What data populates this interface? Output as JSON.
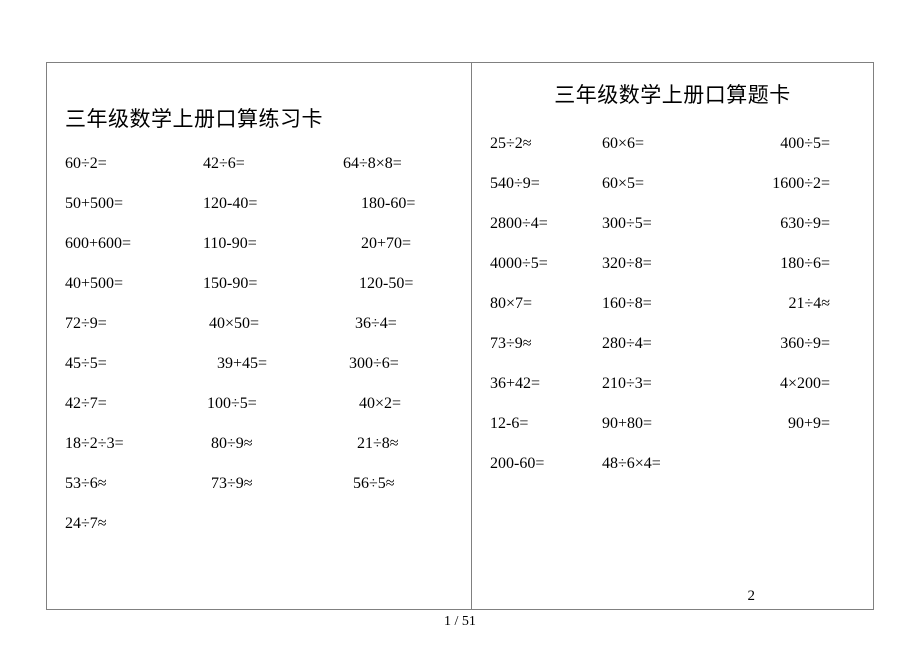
{
  "left_card": {
    "title": "三年级数学上册口算练习卡",
    "rows": [
      [
        "60÷2=",
        "42÷6=",
        "64÷8×8="
      ],
      [
        "50+500=",
        "120-40=",
        "180-60="
      ],
      [
        "600+600=",
        "110-90=",
        "20+70="
      ],
      [
        "40+500=",
        "150-90=",
        "120-50="
      ],
      [
        "72÷9=",
        "40×50=",
        "36÷4="
      ],
      [
        "45÷5=",
        "39+45=",
        "300÷6="
      ],
      [
        "42÷7=",
        "100÷5=",
        "40×2="
      ],
      [
        "18÷2÷3=",
        "80÷9≈",
        "21÷8≈"
      ],
      [
        "53÷6≈",
        "73÷9≈",
        "56÷5≈"
      ],
      [
        "24÷7≈",
        "",
        ""
      ]
    ]
  },
  "right_card": {
    "title": "三年级数学上册口算题卡",
    "rows": [
      [
        "25÷2≈",
        "60×6=",
        "400÷5="
      ],
      [
        "540÷9=",
        "60×5=",
        "1600÷2="
      ],
      [
        "2800÷4=",
        "300÷5=",
        "630÷9="
      ],
      [
        "4000÷5=",
        "320÷8=",
        "180÷6="
      ],
      [
        "80×7=",
        "160÷8=",
        "21÷4≈"
      ],
      [
        "73÷9≈",
        "280÷4=",
        "360÷9="
      ],
      [
        "36+42=",
        "210÷3=",
        "4×200="
      ],
      [
        "12-6=",
        "90+80=",
        "90+9="
      ],
      [
        "200-60=",
        "48÷6×4=",
        ""
      ]
    ],
    "page_number": "2"
  },
  "footer": "1 / 51",
  "style": {
    "font_family": "SimSun",
    "title_fontsize": 21,
    "body_fontsize": 16,
    "text_color": "#000000",
    "border_color": "#808080",
    "background_color": "#ffffff"
  }
}
